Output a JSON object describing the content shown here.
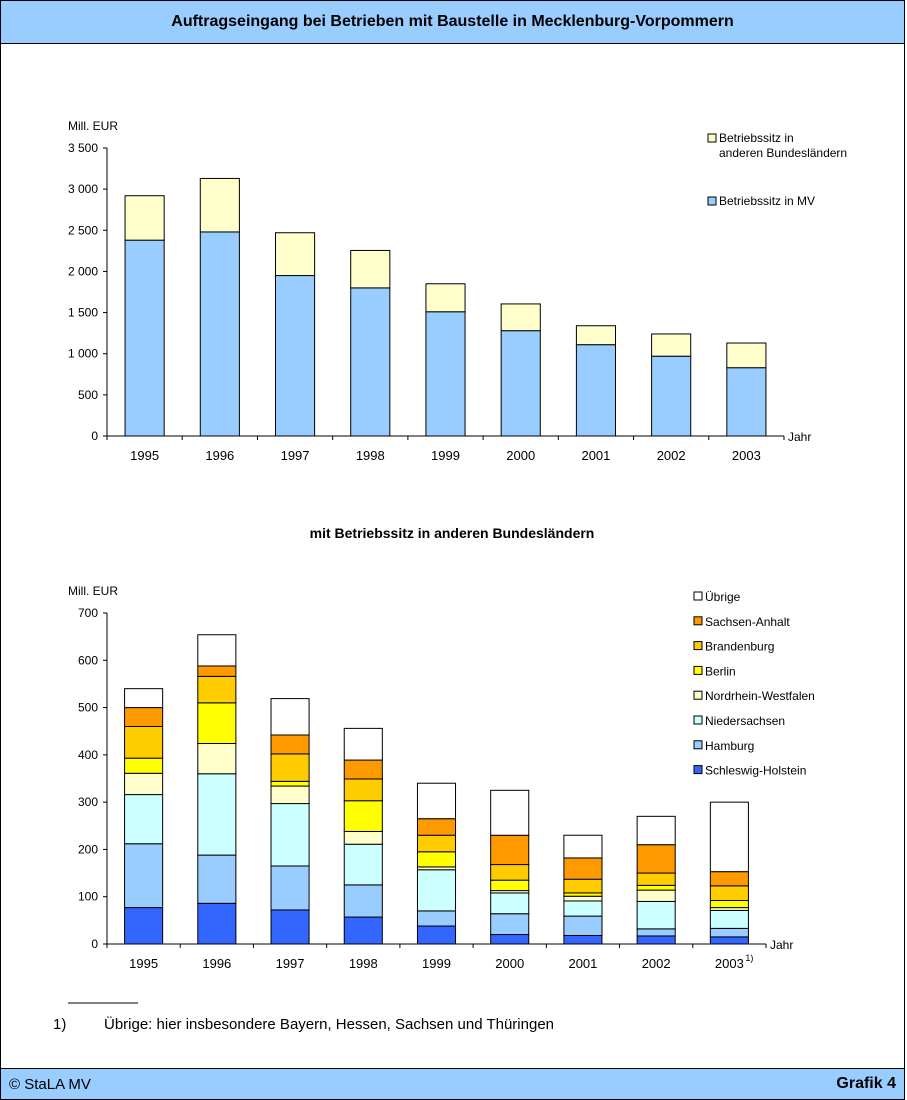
{
  "header": {
    "title": "Auftragseingang bei Betrieben mit Baustelle in Mecklenburg-Vorpommern"
  },
  "footer": {
    "left": "© StaLA MV",
    "right": "Grafik 4"
  },
  "footnote": {
    "rule": "________",
    "mark": "1)",
    "text": "Übrige: hier insbesondere Bayern, Hessen, Sachsen und Thüringen"
  },
  "chart_data": [
    {
      "type": "bar",
      "stacked": true,
      "title": "",
      "ylabel": "Mill. EUR",
      "xlabel": "Jahr",
      "ylim": [
        0,
        3500
      ],
      "ytick_step": 500,
      "ytick_labels": [
        "0",
        "500",
        "1 000",
        "1 500",
        "2 000",
        "2 500",
        "3 000",
        "3 500"
      ],
      "categories": [
        "1995",
        "1996",
        "1997",
        "1998",
        "1999",
        "2000",
        "2001",
        "2002",
        "2003"
      ],
      "legend_position": "top-right",
      "series": [
        {
          "name": "Betriebssitz in MV",
          "color": "#99ccff",
          "values": [
            2380,
            2480,
            1950,
            1800,
            1510,
            1280,
            1110,
            970,
            830
          ]
        },
        {
          "name": "Betriebssitz in anderen Bundesländern",
          "color": "#ffffcc",
          "values": [
            540,
            650,
            520,
            455,
            340,
            325,
            230,
            270,
            300
          ]
        }
      ]
    },
    {
      "type": "bar",
      "stacked": true,
      "title": "mit Betriebssitz in anderen Bundesländern",
      "ylabel": "Mill. EUR",
      "xlabel": "Jahr",
      "ylim": [
        0,
        700
      ],
      "ytick_step": 100,
      "ytick_labels": [
        "0",
        "100",
        "200",
        "300",
        "400",
        "500",
        "600",
        "700"
      ],
      "categories": [
        "1995",
        "1996",
        "1997",
        "1998",
        "1999",
        "2000",
        "2001",
        "2002",
        "2003"
      ],
      "category_superscripts": [
        "",
        "",
        "",
        "",
        "",
        "",
        "",
        "",
        "1)"
      ],
      "legend_position": "top-right",
      "series": [
        {
          "name": "Schleswig-Holstein",
          "color": "#3366ff",
          "values": [
            77,
            86,
            72,
            57,
            38,
            20,
            18,
            17,
            15
          ]
        },
        {
          "name": "Hamburg",
          "color": "#99ccff",
          "values": [
            135,
            102,
            93,
            68,
            32,
            44,
            41,
            15,
            18
          ]
        },
        {
          "name": "Niedersachsen",
          "color": "#ccffff",
          "values": [
            104,
            172,
            132,
            86,
            87,
            44,
            32,
            58,
            38
          ]
        },
        {
          "name": "Nordrhein-Westfalen",
          "color": "#ffffcc",
          "values": [
            45,
            64,
            37,
            27,
            6,
            5,
            10,
            24,
            6
          ]
        },
        {
          "name": "Berlin",
          "color": "#ffff00",
          "values": [
            32,
            86,
            10,
            65,
            32,
            22,
            7,
            10,
            15
          ]
        },
        {
          "name": "Brandenburg",
          "color": "#ffcc00",
          "values": [
            67,
            56,
            58,
            46,
            35,
            33,
            29,
            26,
            31
          ]
        },
        {
          "name": "Sachsen-Anhalt",
          "color": "#ff9900",
          "values": [
            40,
            22,
            40,
            40,
            35,
            62,
            45,
            60,
            30
          ]
        },
        {
          "name": "Übrige",
          "color": "#ffffff",
          "values": [
            40,
            66,
            77,
            67,
            75,
            95,
            48,
            60,
            147
          ]
        }
      ]
    }
  ]
}
